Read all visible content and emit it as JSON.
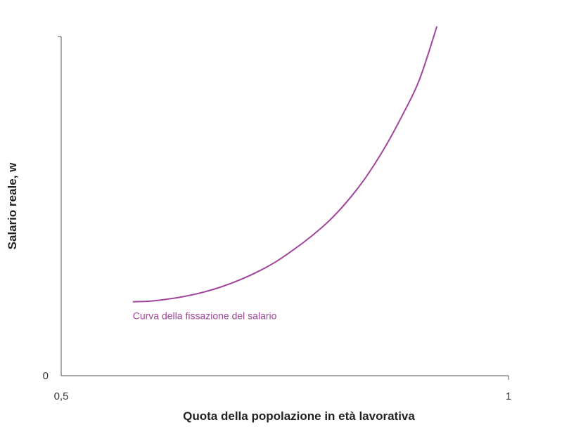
{
  "chart_data": {
    "type": "line",
    "title": "",
    "xlabel": "Quota della popolazione in età lavorativa",
    "ylabel": "Salario reale, w",
    "x_ticks": [
      {
        "value": 0.5,
        "label": "0,5"
      },
      {
        "value": 1,
        "label": "1"
      }
    ],
    "y_ticks": [
      {
        "value": 0,
        "label": "0"
      }
    ],
    "xlim": [
      0.5,
      1
    ],
    "ylim": [
      0,
      1
    ],
    "grid": false,
    "series": [
      {
        "name": "Curva della fissazione del salario",
        "color": "#a0449c",
        "x": [
          0.58,
          0.6,
          0.62,
          0.64,
          0.66,
          0.68,
          0.7,
          0.72,
          0.74,
          0.76,
          0.78,
          0.8,
          0.82,
          0.84,
          0.86,
          0.88,
          0.9,
          0.92
        ],
        "y": [
          0.218,
          0.22,
          0.226,
          0.235,
          0.247,
          0.263,
          0.283,
          0.307,
          0.336,
          0.372,
          0.412,
          0.458,
          0.515,
          0.583,
          0.665,
          0.761,
          0.87,
          1.03
        ]
      }
    ]
  }
}
